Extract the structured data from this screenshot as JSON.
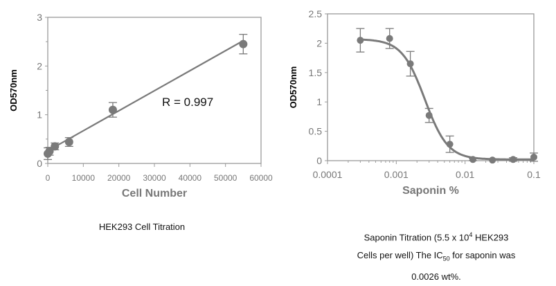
{
  "chart_data": [
    {
      "type": "scatter",
      "title": "HEK293 Cell Titration",
      "xlabel": "Cell Number",
      "ylabel": "OD570nm",
      "xlim": [
        0,
        60000
      ],
      "ylim": [
        0,
        3
      ],
      "xticks": [
        "0",
        "10000",
        "20000",
        "30000",
        "40000",
        "50000",
        "60000"
      ],
      "yticks": [
        "0",
        "1",
        "2",
        "3"
      ],
      "annotation": "R = 0.997",
      "fit": "linear",
      "fit_line": [
        [
          0,
          0.26
        ],
        [
          55000,
          2.52
        ]
      ],
      "points": [
        {
          "x": 0,
          "y": 0.2,
          "err": 0.12
        },
        {
          "x": 500,
          "y": 0.25,
          "err": 0.08
        },
        {
          "x": 2000,
          "y": 0.35,
          "err": 0.07
        },
        {
          "x": 6000,
          "y": 0.44,
          "err": 0.09
        },
        {
          "x": 18300,
          "y": 1.1,
          "err": 0.15
        },
        {
          "x": 55000,
          "y": 2.45,
          "err": 0.2
        }
      ],
      "color": "#7a7a7a"
    },
    {
      "type": "scatter",
      "title": "Saponin Titration",
      "xlabel": "Saponin %",
      "ylabel": "OD570nm",
      "xscale": "log",
      "xlim": [
        0.0001,
        0.1
      ],
      "ylim": [
        0,
        2.5
      ],
      "xticks": [
        "0.0001",
        "0.001",
        "0.01",
        "0.1"
      ],
      "yticks": [
        "0",
        "0.5",
        "1",
        "1.5",
        "2",
        "2.5"
      ],
      "fit": "sigmoidal",
      "fit_params": {
        "top": 2.07,
        "bottom": 0.02,
        "ic50": 0.0026,
        "hill": 2.6
      },
      "points": [
        {
          "x": 0.0003,
          "y": 2.05,
          "err": 0.2
        },
        {
          "x": 0.0008,
          "y": 2.08,
          "err": 0.17
        },
        {
          "x": 0.0016,
          "y": 1.65,
          "err": 0.21
        },
        {
          "x": 0.003,
          "y": 0.77,
          "err": 0.12
        },
        {
          "x": 0.006,
          "y": 0.28,
          "err": 0.14
        },
        {
          "x": 0.013,
          "y": 0.02,
          "err": 0.02
        },
        {
          "x": 0.025,
          "y": 0.01,
          "err": 0.0
        },
        {
          "x": 0.05,
          "y": 0.02,
          "err": 0.03
        },
        {
          "x": 0.1,
          "y": 0.06,
          "err": 0.07
        }
      ],
      "color": "#7a7a7a"
    }
  ],
  "captions": {
    "left": "HEK293 Cell Titration",
    "right_line1_a": "Saponin Titration (5.5 x 10",
    "right_line1_sup": "4",
    "right_line1_b": " HEK293",
    "right_line2_a": "Cells per well) The IC",
    "right_line2_sub": "50",
    "right_line2_b": " for saponin was",
    "right_line3": "0.0026 wt%."
  }
}
